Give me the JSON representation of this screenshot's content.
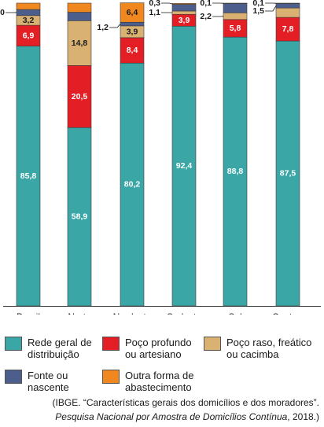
{
  "chart_data": {
    "type": "bar",
    "stacked": true,
    "ylim": [
      0,
      100
    ],
    "categories": [
      "Brasil",
      "Norte",
      "Nordeste",
      "Sudeste",
      "Sul",
      "Centro-\nOeste"
    ],
    "series": [
      {
        "name": "Rede geral de\ndistribuição",
        "color": "#3aa6a6",
        "values": [
          85.8,
          58.9,
          80.2,
          92.4,
          88.8,
          87.5
        ],
        "labels": [
          "85,8",
          "58,9",
          "80,2",
          "92,4",
          "88,8",
          "87,5"
        ]
      },
      {
        "name": "Poço profundo\nou artesiano",
        "color": "#e31e24",
        "values": [
          6.9,
          20.5,
          8.4,
          3.9,
          5.8,
          7.8
        ],
        "labels": [
          "6,9",
          "20,5",
          "8,4",
          "3,9",
          "5,8",
          "7,8"
        ]
      },
      {
        "name": "Poço raso, freático\nou cacimba",
        "color": "#d9b173",
        "values": [
          3.2,
          14.8,
          3.9,
          1.1,
          2.2,
          3.1
        ],
        "labels": [
          "3,2",
          "14,8",
          "3,9",
          "1,1",
          "2,2",
          "3,1"
        ]
      },
      {
        "name": "Fonte ou\nnascente",
        "color": "#4b5e8c",
        "values": [
          2.0,
          2.8,
          1.2,
          2.2,
          3.1,
          1.5
        ],
        "labels": [
          "2,0",
          "2,8",
          "1,2",
          "2,2",
          "3,1",
          "1,5"
        ]
      },
      {
        "name": "Outra forma de\nabastecimento",
        "color": "#f0871f",
        "values": [
          2.1,
          3.0,
          6.4,
          0.3,
          0.1,
          0.1
        ],
        "labels": [
          "2,1",
          "3,0",
          "6,4",
          "0,3",
          "0,1",
          "0,1"
        ]
      }
    ]
  },
  "source": {
    "line1": "(IBGE. “Características gerais dos domicílios e dos moradores”.",
    "line2_italic": "Pesquisa Nacional por Amostra de Domicílios Contínua",
    "line2_rest": ", 2018.)"
  }
}
